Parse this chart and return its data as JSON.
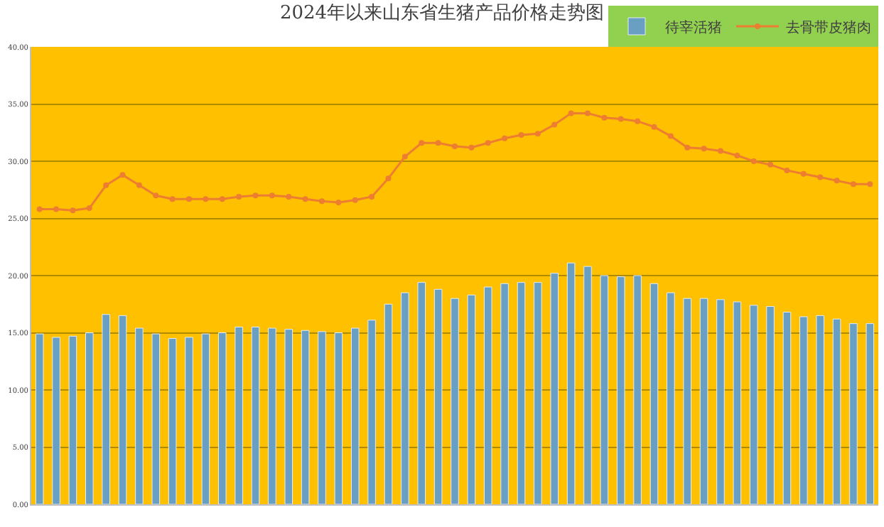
{
  "chart_data": {
    "type": "bar",
    "title": "2024年以来山东省生猪产品价格走势图",
    "categories": [
      null,
      null,
      null,
      null,
      null,
      null,
      null,
      null,
      null,
      null,
      null,
      null,
      null,
      null,
      null,
      null,
      null,
      null,
      null,
      null,
      null,
      null,
      null,
      null,
      null,
      null,
      null,
      null,
      null,
      null,
      null,
      null,
      null,
      null,
      null,
      null,
      null,
      null,
      null,
      null,
      null,
      null,
      null,
      null,
      null,
      null,
      null,
      null,
      null,
      null,
      null
    ],
    "series": [
      {
        "name": "待宰活猪",
        "color": "#6a9fc4",
        "values": [
          14.9,
          14.6,
          14.7,
          15.0,
          16.6,
          16.5,
          15.4,
          14.9,
          14.5,
          14.6,
          14.9,
          15.0,
          15.5,
          15.5,
          15.4,
          15.3,
          15.2,
          15.1,
          15.0,
          15.4,
          16.1,
          17.5,
          18.5,
          19.4,
          18.8,
          18.0,
          18.3,
          19.0,
          19.3,
          19.4,
          19.4,
          20.2,
          21.1,
          20.8,
          20.0,
          19.9,
          20.0,
          19.3,
          18.5,
          18.0,
          18.0,
          17.9,
          17.7,
          17.4,
          17.3,
          16.8,
          16.4,
          16.5,
          16.2,
          15.8,
          15.8
        ]
      },
      {
        "name": "去骨带皮猪肉",
        "type": "line",
        "color": "#ed7d31",
        "values": [
          25.8,
          25.8,
          25.7,
          25.9,
          27.9,
          28.8,
          27.9,
          27.0,
          26.7,
          26.7,
          26.7,
          26.7,
          26.9,
          27.0,
          27.0,
          26.9,
          26.7,
          26.5,
          26.4,
          26.6,
          26.9,
          28.5,
          30.4,
          31.6,
          31.6,
          31.3,
          31.2,
          31.6,
          32.0,
          32.3,
          32.4,
          33.2,
          34.2,
          34.2,
          33.8,
          33.7,
          33.5,
          33.0,
          32.2,
          31.2,
          31.1,
          30.9,
          30.5,
          30.0,
          29.7,
          29.2,
          28.9,
          28.6,
          28.3,
          28.0,
          28.0
        ]
      }
    ],
    "ylim": [
      0,
      40
    ],
    "yticks": [
      {
        "value": 0,
        "label": "0.00"
      },
      {
        "value": 5,
        "label": "5.00"
      },
      {
        "value": 10,
        "label": "10.00"
      },
      {
        "value": 15,
        "label": "15.00"
      },
      {
        "value": 20,
        "label": "20.00"
      },
      {
        "value": 25,
        "label": "25.00"
      },
      {
        "value": 30,
        "label": "30.00"
      },
      {
        "value": 35,
        "label": "35.00"
      },
      {
        "value": 40,
        "label": "40.00"
      }
    ],
    "grid": "y",
    "legend": "top right",
    "marker": "circle",
    "line_style": "solid",
    "tick_labels": "y"
  }
}
